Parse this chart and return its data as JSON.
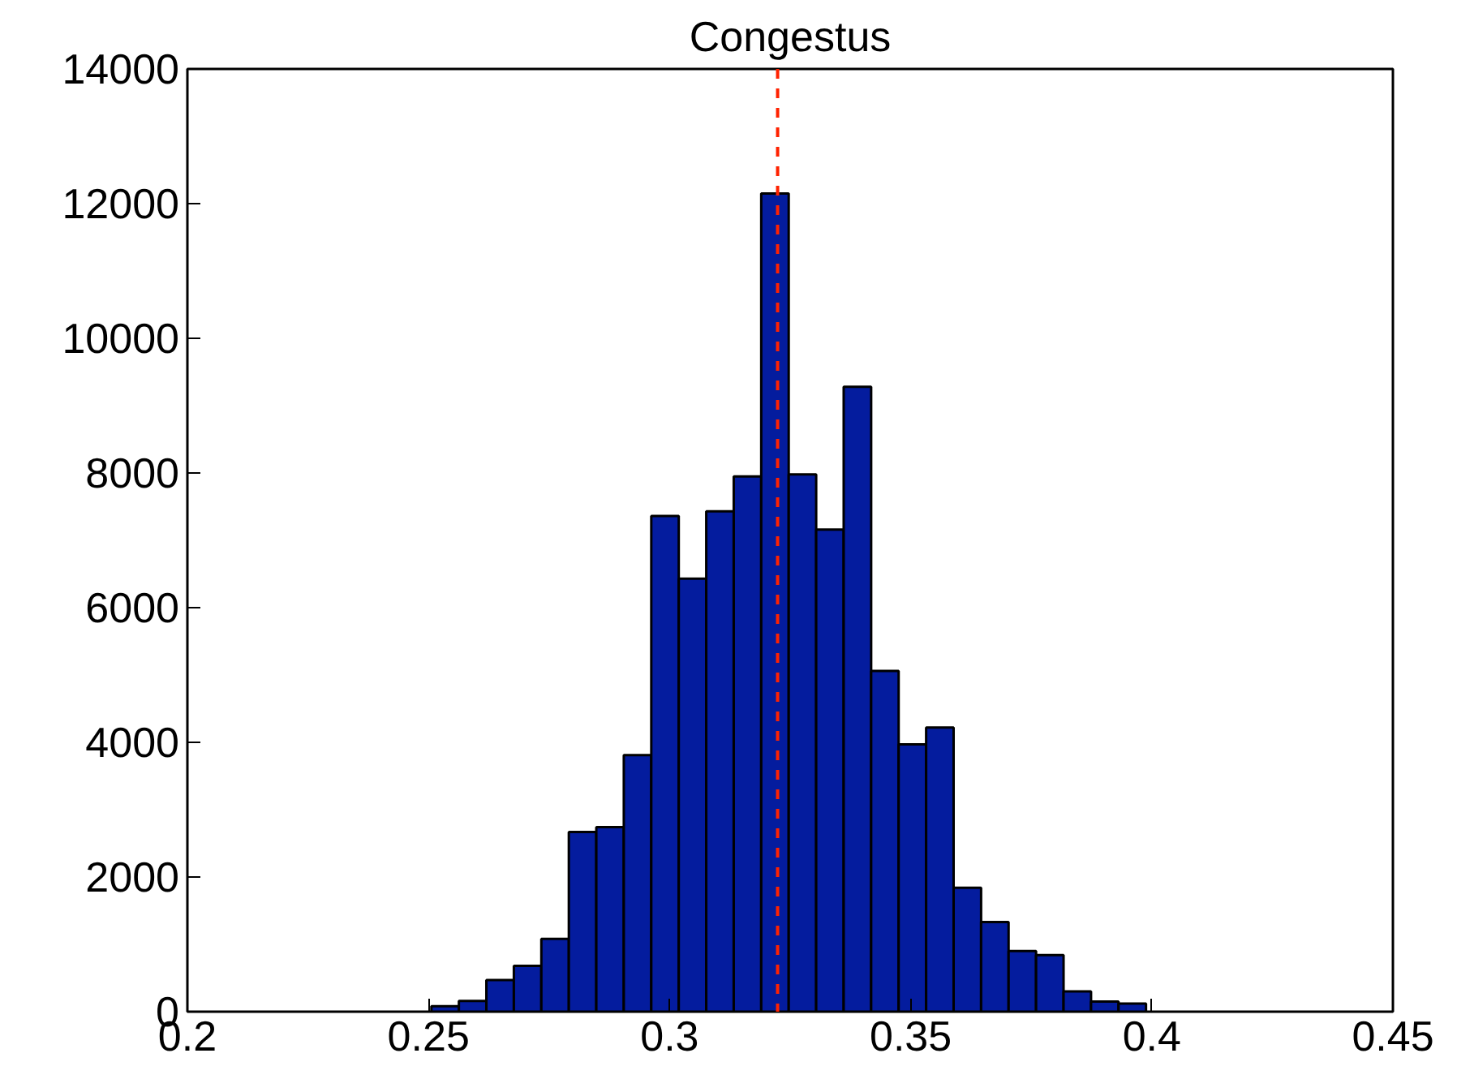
{
  "chart_data": {
    "type": "histogram",
    "title": "Congestus",
    "bins": [
      0.2449,
      0.2506,
      0.2563,
      0.262,
      0.2677,
      0.2734,
      0.2791,
      0.2848,
      0.2905,
      0.2962,
      0.3019,
      0.3076,
      0.3133,
      0.319,
      0.3247,
      0.3304,
      0.3361,
      0.3418,
      0.3475,
      0.3532,
      0.3589,
      0.3646,
      0.3703,
      0.376,
      0.3817,
      0.3874,
      0.3931,
      0.3988,
      0.4045
    ],
    "values": [
      null,
      80,
      160,
      470,
      680,
      1080,
      2670,
      2740,
      3810,
      7360,
      6430,
      7430,
      7950,
      12150,
      7980,
      7160,
      9280,
      5060,
      3970,
      4220,
      1840,
      1330,
      900,
      840,
      300,
      150,
      120,
      null
    ],
    "color": "#041c9e",
    "xlim": [
      0.2,
      0.45
    ],
    "ylim": [
      0,
      14000
    ],
    "xticks": [
      0.2,
      0.25,
      0.3,
      0.35,
      0.4,
      0.45
    ],
    "yticks": [
      0,
      2000,
      4000,
      6000,
      8000,
      10000,
      12000,
      14000
    ],
    "grid": false,
    "ref_lines": [
      {
        "axis": "x",
        "value": 0.3224,
        "color": "#ff2200",
        "line_style": "dashed"
      }
    ]
  }
}
